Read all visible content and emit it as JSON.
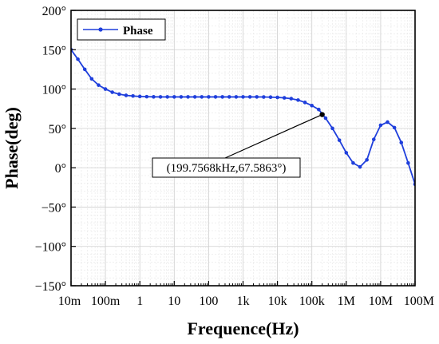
{
  "chart_data": {
    "type": "line",
    "xlabel": "Frequence(Hz)",
    "ylabel": "Phase(deg)",
    "x_scale": "log",
    "xlim": [
      0.01,
      100000000
    ],
    "ylim": [
      -150,
      200
    ],
    "grid": true,
    "legend_position": "top-left",
    "x_ticks": [
      {
        "value": 0.01,
        "label": "10m"
      },
      {
        "value": 0.1,
        "label": "100m"
      },
      {
        "value": 1,
        "label": "1"
      },
      {
        "value": 10,
        "label": "10"
      },
      {
        "value": 100,
        "label": "100"
      },
      {
        "value": 1000,
        "label": "1k"
      },
      {
        "value": 10000,
        "label": "10k"
      },
      {
        "value": 100000,
        "label": "100k"
      },
      {
        "value": 1000000,
        "label": "1M"
      },
      {
        "value": 10000000,
        "label": "10M"
      },
      {
        "value": 100000000,
        "label": "100M"
      }
    ],
    "y_ticks": [
      {
        "value": 200,
        "label": "200°"
      },
      {
        "value": 150,
        "label": "150°"
      },
      {
        "value": 100,
        "label": "100°"
      },
      {
        "value": 50,
        "label": "50°"
      },
      {
        "value": 0,
        "label": "0°"
      },
      {
        "value": -50,
        "label": "−50°"
      },
      {
        "value": -100,
        "label": "−100°"
      },
      {
        "value": -150,
        "label": "−150°"
      }
    ],
    "series": [
      {
        "name": "Phase",
        "color": "#1f3fdc",
        "points": [
          [
            0.01,
            150
          ],
          [
            0.0158,
            138
          ],
          [
            0.0251,
            125
          ],
          [
            0.0398,
            113
          ],
          [
            0.0631,
            105
          ],
          [
            0.1,
            100
          ],
          [
            0.158,
            96
          ],
          [
            0.251,
            93.5
          ],
          [
            0.398,
            92
          ],
          [
            0.631,
            91.2
          ],
          [
            1,
            90.6
          ],
          [
            1.585,
            90.3
          ],
          [
            2.512,
            90.1
          ],
          [
            3.981,
            90
          ],
          [
            6.31,
            90
          ],
          [
            10,
            90
          ],
          [
            15.85,
            90
          ],
          [
            25.12,
            90
          ],
          [
            39.81,
            90
          ],
          [
            63.1,
            90
          ],
          [
            100,
            90
          ],
          [
            158.5,
            90
          ],
          [
            251.2,
            90
          ],
          [
            398.1,
            90
          ],
          [
            631,
            90
          ],
          [
            1000,
            90
          ],
          [
            1585,
            90
          ],
          [
            2512,
            90
          ],
          [
            3981,
            89.9
          ],
          [
            6310,
            89.7
          ],
          [
            10000,
            89.4
          ],
          [
            15850,
            88.8
          ],
          [
            25120,
            87.8
          ],
          [
            39810,
            86
          ],
          [
            63100,
            83
          ],
          [
            100000,
            79
          ],
          [
            158500,
            74
          ],
          [
            251200,
            63
          ],
          [
            398100,
            50
          ],
          [
            631000,
            35
          ],
          [
            1000000,
            19
          ],
          [
            1585000,
            6
          ],
          [
            2512000,
            1
          ],
          [
            3981000,
            10
          ],
          [
            6310000,
            36
          ],
          [
            10000000,
            54
          ],
          [
            15850000,
            58
          ],
          [
            25120000,
            51
          ],
          [
            39810000,
            32
          ],
          [
            63100000,
            6
          ],
          [
            100000000,
            -21
          ]
        ]
      }
    ],
    "annotations": [
      {
        "text": "(199.7568kHz,67.5863°)",
        "x": 199756.8,
        "y": 67.5863
      }
    ]
  }
}
